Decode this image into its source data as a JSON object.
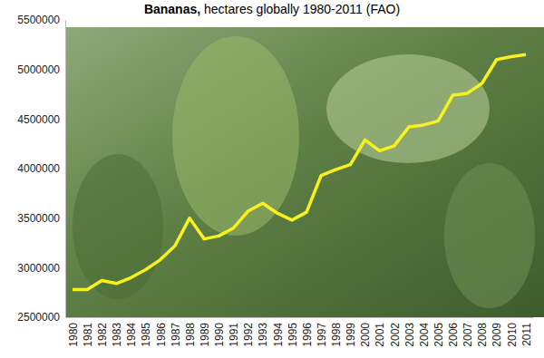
{
  "chart_data": {
    "type": "line",
    "title": "Bananas, hectares globally 1980-2011 (FAO)",
    "categories": [
      "1980",
      "1981",
      "1982",
      "1983",
      "1984",
      "1985",
      "1986",
      "1987",
      "1988",
      "1989",
      "1990",
      "1991",
      "1992",
      "1993",
      "1994",
      "1995",
      "1996",
      "1997",
      "1998",
      "1999",
      "2000",
      "2001",
      "2002",
      "2003",
      "2004",
      "2005",
      "2006",
      "2007",
      "2008",
      "2009",
      "2010",
      "2011"
    ],
    "values": [
      2780000,
      2780000,
      2870000,
      2840000,
      2900000,
      2980000,
      3080000,
      3220000,
      3500000,
      3290000,
      3320000,
      3400000,
      3570000,
      3650000,
      3550000,
      3480000,
      3560000,
      3930000,
      3990000,
      4040000,
      4290000,
      4180000,
      4230000,
      4420000,
      4440000,
      4480000,
      4740000,
      4760000,
      4860000,
      5100000,
      5130000,
      5150000
    ],
    "color": "#f7f21e",
    "ylim": [
      2500000,
      5500000
    ],
    "yticks": [
      2500000,
      3000000,
      3500000,
      4000000,
      4500000,
      5000000,
      5500000
    ],
    "grid": false
  }
}
